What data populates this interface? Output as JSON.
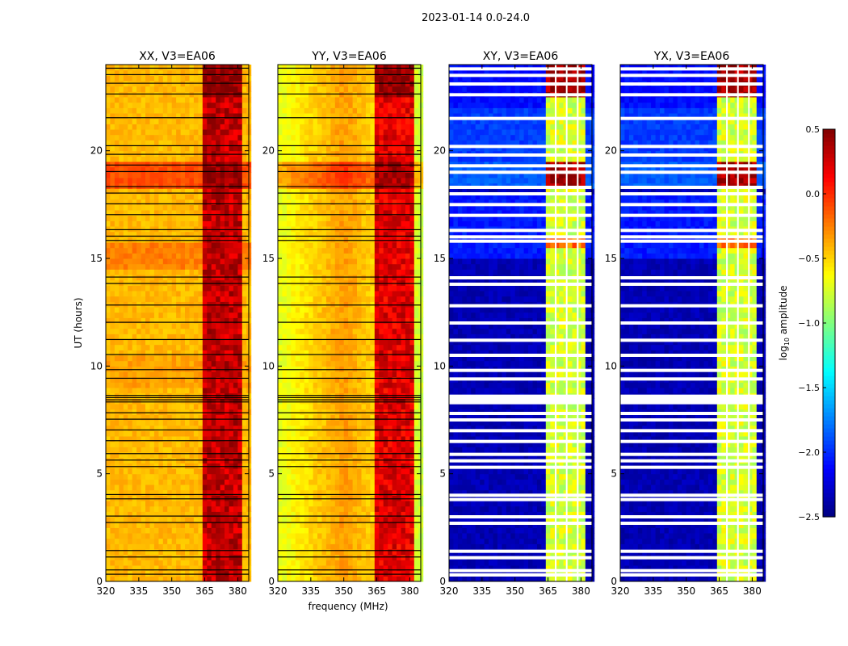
{
  "chart_data": {
    "type": "heatmap",
    "suptitle": "2023-01-14 0.0-24.0",
    "xlabel": "frequency (MHz)",
    "ylabel": "UT (hours)",
    "xlim": [
      320,
      385
    ],
    "ylim": [
      0,
      24
    ],
    "xticks": [
      "320",
      "335",
      "350",
      "365",
      "380"
    ],
    "yticks": [
      "0",
      "5",
      "10",
      "15",
      "20"
    ],
    "colorbar": {
      "label": "log10 amplitude",
      "label_main": "log",
      "label_sub": "10",
      "label_tail": " amplitude",
      "range": [
        -2.5,
        0.5
      ],
      "ticks": [
        "0.5",
        "0.0",
        "−0.5",
        "−1.0",
        "−1.5",
        "−2.0",
        "−2.5"
      ],
      "colormap": "jet"
    },
    "grid": {
      "freq_step_mhz": 2,
      "time_step_hours": 0.25
    },
    "flagged_hours": [
      0.3,
      0.5,
      1.1,
      1.4,
      2.7,
      3.0,
      3.8,
      4.0,
      5.3,
      5.6,
      5.9,
      6.5,
      7.0,
      7.5,
      7.8,
      8.3,
      8.4,
      8.5,
      8.6,
      9.4,
      9.8,
      10.5,
      11.2,
      12.0,
      12.8,
      13.8,
      14.1,
      15.8,
      16.0,
      16.3,
      17.0,
      17.5,
      18.0,
      18.3,
      19.0,
      19.3,
      19.8,
      20.2,
      21.5,
      22.6,
      23.1,
      23.5,
      23.8
    ],
    "panels": [
      {
        "title": "XX, V3=EA06",
        "base": -0.42,
        "segments": [
          [
            18.2,
            19.3,
            -0.1
          ],
          [
            14.5,
            15.6,
            -0.25
          ],
          [
            8.8,
            10.5,
            -0.35
          ]
        ],
        "profile_center": 350,
        "profile_gain": 0.0,
        "rfi_band": [
          363,
          381
        ],
        "rfi_level": 0.3,
        "rfi_strong": [
          [
            22.5,
            24,
            0.45
          ],
          [
            18.2,
            19.3,
            0.45
          ]
        ],
        "flag_style": "black"
      },
      {
        "title": "YY, V3=EA06",
        "base": -0.55,
        "segments": [
          [
            18.2,
            19.3,
            -0.25
          ]
        ],
        "profile_center": 350,
        "profile_gain": 0.45,
        "rfi_band": [
          363,
          381
        ],
        "rfi_level": 0.2,
        "rfi_strong": [
          [
            22.5,
            24,
            0.45
          ],
          [
            18.2,
            19.3,
            0.4
          ]
        ],
        "flag_style": "black"
      },
      {
        "title": "XY, V3=EA06",
        "base": -2.35,
        "segments": [
          [
            19.5,
            22,
            -1.95
          ],
          [
            15,
            18,
            -2.05
          ],
          [
            18.2,
            19.3,
            -1.85
          ],
          [
            22,
            24,
            -2.1
          ]
        ],
        "profile_center": 350,
        "profile_gain": 0.0,
        "rfi_band": [
          363,
          381
        ],
        "rfi_level": -0.75,
        "rfi_strong": [
          [
            22.5,
            24,
            0.4
          ],
          [
            18.2,
            19.3,
            0.4
          ],
          [
            15.5,
            16,
            -0.2
          ]
        ],
        "flag_style": "white"
      },
      {
        "title": "YX, V3=EA06",
        "base": -2.35,
        "segments": [
          [
            19.5,
            22,
            -1.95
          ],
          [
            15,
            18,
            -2.05
          ],
          [
            18.2,
            19.3,
            -1.85
          ],
          [
            22,
            24,
            -2.1
          ]
        ],
        "profile_center": 350,
        "profile_gain": 0.0,
        "rfi_band": [
          363,
          381
        ],
        "rfi_level": -0.75,
        "rfi_strong": [
          [
            22.5,
            24,
            0.4
          ],
          [
            18.2,
            19.3,
            0.4
          ],
          [
            15.5,
            16,
            -0.2
          ]
        ],
        "flag_style": "white"
      }
    ]
  }
}
